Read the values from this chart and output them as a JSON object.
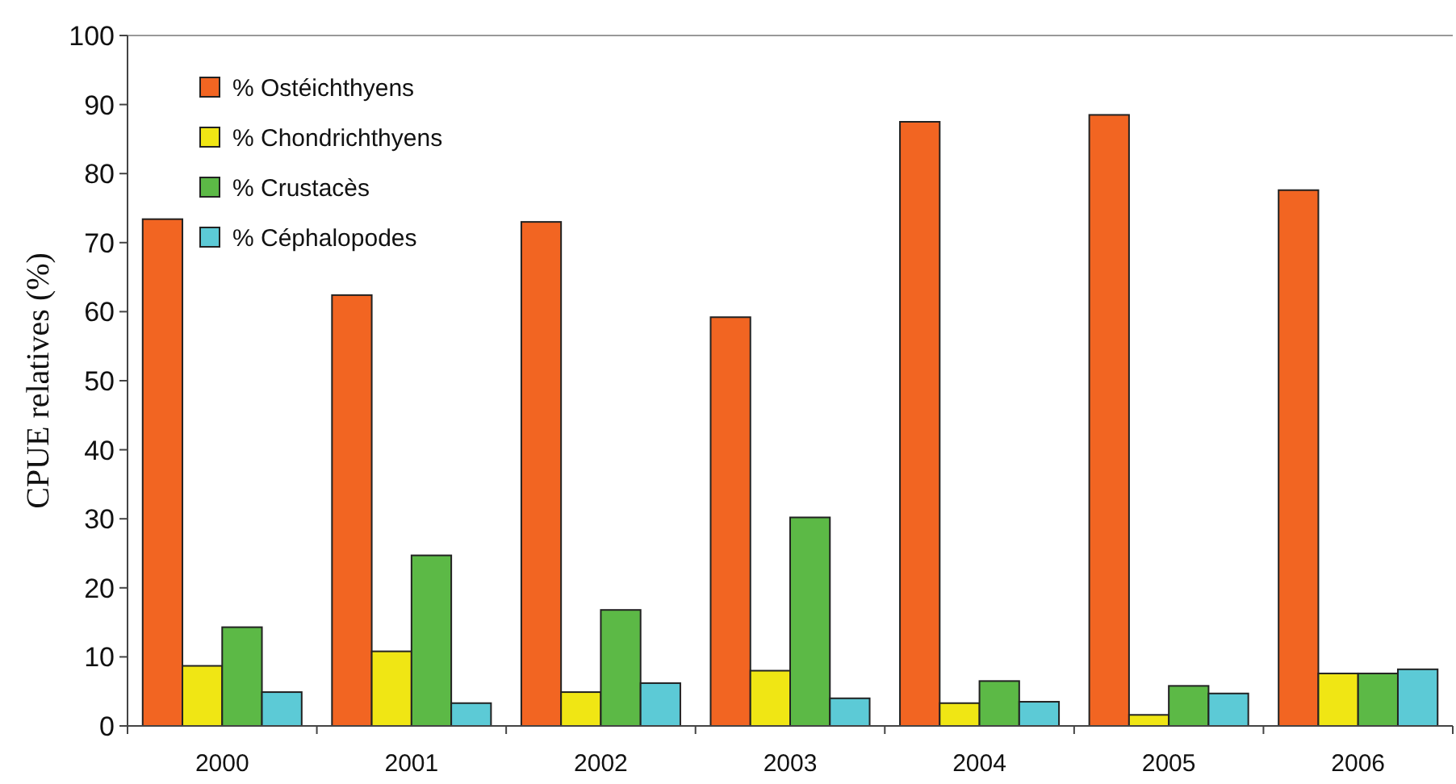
{
  "chart_data": {
    "type": "bar",
    "ylabel": "CPUE relatives (%)",
    "categories": [
      "2000",
      "2001",
      "2002",
      "2003",
      "2004",
      "2005",
      "2006"
    ],
    "series": [
      {
        "name": "% Ostéichthyens",
        "color": "#f26522",
        "values": [
          73.4,
          62.4,
          73.0,
          59.2,
          87.5,
          88.5,
          77.6
        ]
      },
      {
        "name": "% Chondrichthyens",
        "color": "#f0e614",
        "values": [
          8.7,
          10.8,
          4.9,
          8.0,
          3.3,
          1.6,
          7.6
        ]
      },
      {
        "name": "% Crustacès",
        "color": "#5cb946",
        "values": [
          14.3,
          24.7,
          16.8,
          30.2,
          6.5,
          5.8,
          7.6
        ]
      },
      {
        "name": "% Céphalopodes",
        "color": "#5ccad6",
        "values": [
          4.9,
          3.3,
          6.2,
          4.0,
          3.5,
          4.7,
          8.2
        ]
      }
    ],
    "ylim": [
      0,
      100
    ],
    "yticks": [
      0,
      10,
      20,
      30,
      40,
      50,
      60,
      70,
      80,
      90,
      100
    ],
    "grid": false,
    "legend": "top left"
  }
}
